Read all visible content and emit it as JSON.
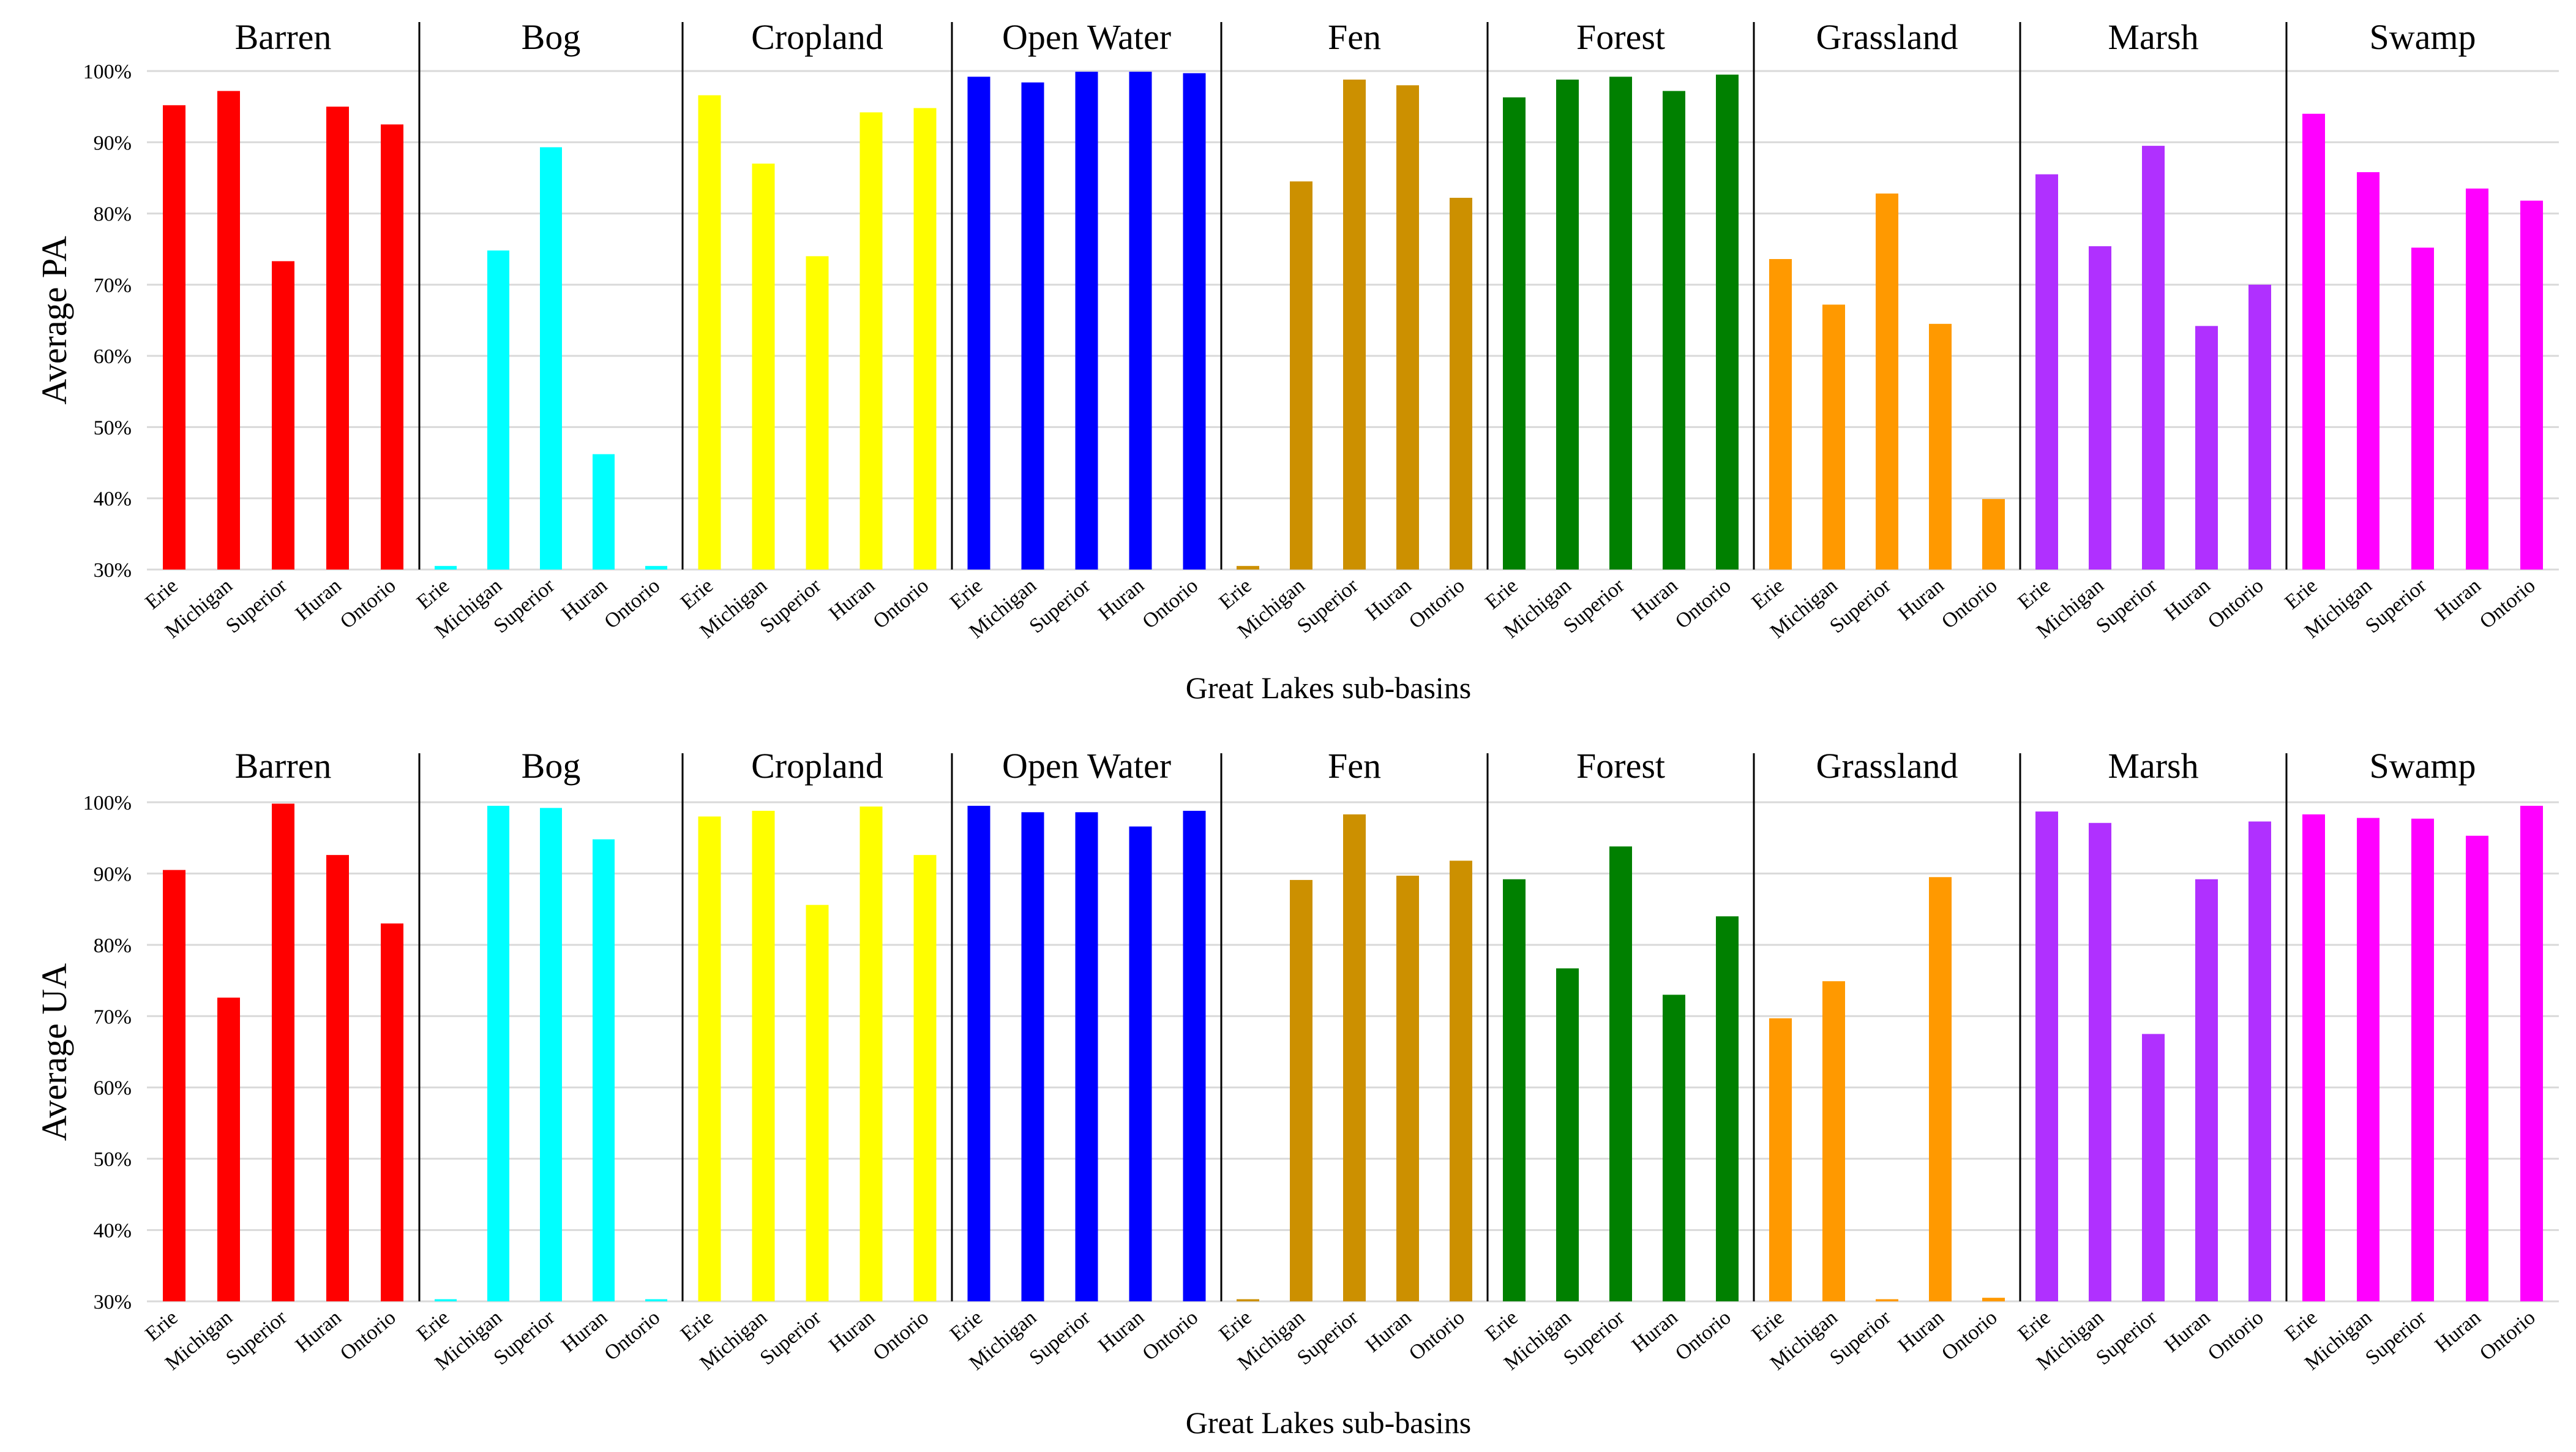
{
  "chart_data": [
    {
      "type": "bar",
      "ylabel": "Average PA",
      "xlabel": "Great Lakes sub-basins",
      "ylim": [
        30,
        100
      ],
      "yticks": [
        "30%",
        "40%",
        "50%",
        "60%",
        "70%",
        "80%",
        "90%",
        "100%"
      ],
      "categories": [
        "Erie",
        "Michigan",
        "Superior",
        "Huran",
        "Ontorio"
      ],
      "panels": [
        {
          "name": "Barren",
          "color": "#ff0000",
          "values": [
            95.2,
            97.2,
            73.3,
            95.0,
            92.5
          ]
        },
        {
          "name": "Bog",
          "color": "#00ffff",
          "values": [
            30.5,
            74.8,
            89.3,
            46.2,
            30.5
          ]
        },
        {
          "name": "Cropland",
          "color": "#ffff00",
          "values": [
            96.6,
            87.0,
            74.0,
            94.2,
            94.8
          ]
        },
        {
          "name": "Open Water",
          "color": "#0000ff",
          "values": [
            99.2,
            98.4,
            99.9,
            99.9,
            99.7
          ]
        },
        {
          "name": "Fen",
          "color": "#cc9000",
          "values": [
            30.5,
            84.5,
            98.8,
            98.0,
            82.2
          ]
        },
        {
          "name": "Forest",
          "color": "#008000",
          "values": [
            96.3,
            98.8,
            99.2,
            97.2,
            99.5
          ]
        },
        {
          "name": "Grassland",
          "color": "#ff9900",
          "values": [
            73.6,
            67.2,
            82.8,
            64.5,
            39.9
          ]
        },
        {
          "name": "Marsh",
          "color": "#b030ff",
          "values": [
            85.5,
            75.4,
            89.5,
            64.2,
            70.0
          ]
        },
        {
          "name": "Swamp",
          "color": "#ff00ff",
          "values": [
            94.0,
            85.8,
            75.2,
            83.5,
            81.8
          ]
        }
      ]
    },
    {
      "type": "bar",
      "ylabel": "Average UA",
      "xlabel": "Great Lakes sub-basins",
      "ylim": [
        30,
        100
      ],
      "yticks": [
        "30%",
        "40%",
        "50%",
        "60%",
        "70%",
        "80%",
        "90%",
        "100%"
      ],
      "categories": [
        "Erie",
        "Michigan",
        "Superior",
        "Huran",
        "Ontorio"
      ],
      "panels": [
        {
          "name": "Barren",
          "color": "#ff0000",
          "values": [
            90.5,
            72.6,
            99.8,
            92.6,
            83.0
          ]
        },
        {
          "name": "Bog",
          "color": "#00ffff",
          "values": [
            30.3,
            99.5,
            99.2,
            94.8,
            30.3
          ]
        },
        {
          "name": "Cropland",
          "color": "#ffff00",
          "values": [
            98.0,
            98.8,
            85.6,
            99.4,
            92.6
          ]
        },
        {
          "name": "Open Water",
          "color": "#0000ff",
          "values": [
            99.5,
            98.6,
            98.6,
            96.6,
            98.8
          ]
        },
        {
          "name": "Fen",
          "color": "#cc9000",
          "values": [
            30.3,
            89.1,
            98.3,
            89.7,
            91.8
          ]
        },
        {
          "name": "Forest",
          "color": "#008000",
          "values": [
            89.2,
            76.7,
            93.8,
            73.0,
            84.0
          ]
        },
        {
          "name": "Grassland",
          "color": "#ff9900",
          "values": [
            69.7,
            74.9,
            30.3,
            89.5,
            30.5
          ]
        },
        {
          "name": "Marsh",
          "color": "#b030ff",
          "values": [
            98.7,
            97.1,
            67.5,
            89.2,
            97.3
          ]
        },
        {
          "name": "Swamp",
          "color": "#ff00ff",
          "values": [
            98.3,
            97.8,
            97.7,
            95.3,
            99.5
          ]
        }
      ]
    }
  ]
}
